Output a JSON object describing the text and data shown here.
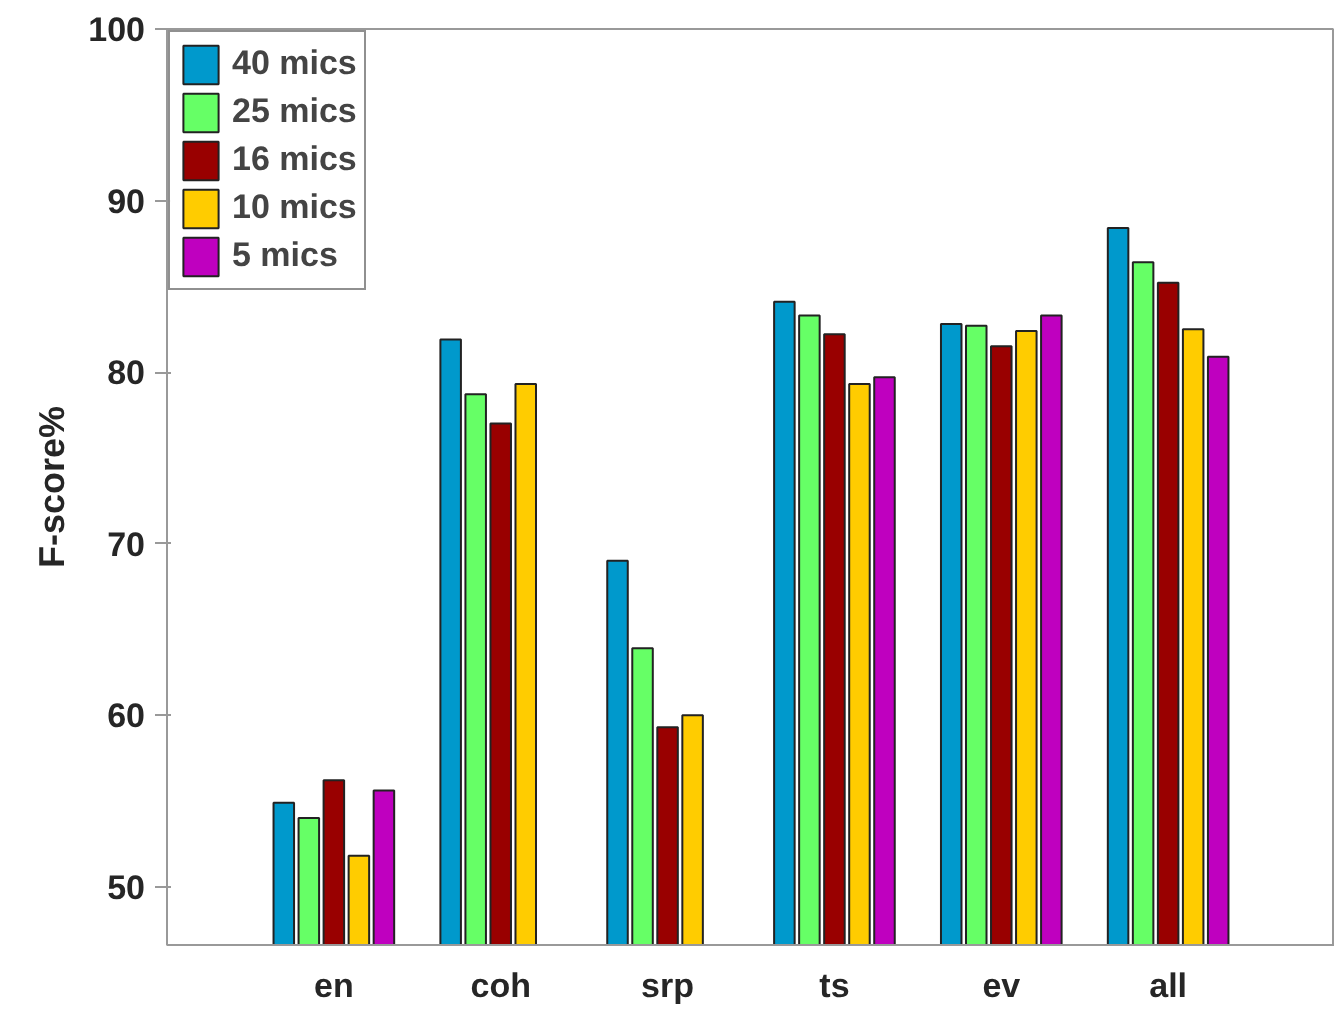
{
  "chart_data": {
    "type": "bar",
    "ylabel": "F-score%",
    "categories": [
      "en",
      "coh",
      "srp",
      "ts",
      "ev",
      "all"
    ],
    "series": [
      {
        "name": "40 mics",
        "color": "#0099cc",
        "values": [
          54.9,
          81.9,
          69.0,
          84.1,
          82.8,
          88.4
        ]
      },
      {
        "name": "25 mics",
        "color": "#66ff66",
        "values": [
          54.0,
          78.7,
          63.9,
          83.3,
          82.7,
          86.4
        ]
      },
      {
        "name": "16 mics",
        "color": "#990000",
        "values": [
          56.2,
          77.0,
          59.3,
          82.2,
          81.5,
          85.2
        ]
      },
      {
        "name": "10 mics",
        "color": "#ffcc00",
        "values": [
          51.8,
          79.3,
          60.0,
          79.3,
          82.4,
          82.5
        ]
      },
      {
        "name": "5 mics",
        "color": "#bf00bf",
        "values": [
          55.6,
          null,
          null,
          79.7,
          83.3,
          80.9
        ]
      }
    ],
    "ylim": [
      46.6,
      100
    ],
    "yticks": [
      50,
      60,
      70,
      80,
      90,
      100
    ],
    "grid": false,
    "legend": "top left"
  }
}
